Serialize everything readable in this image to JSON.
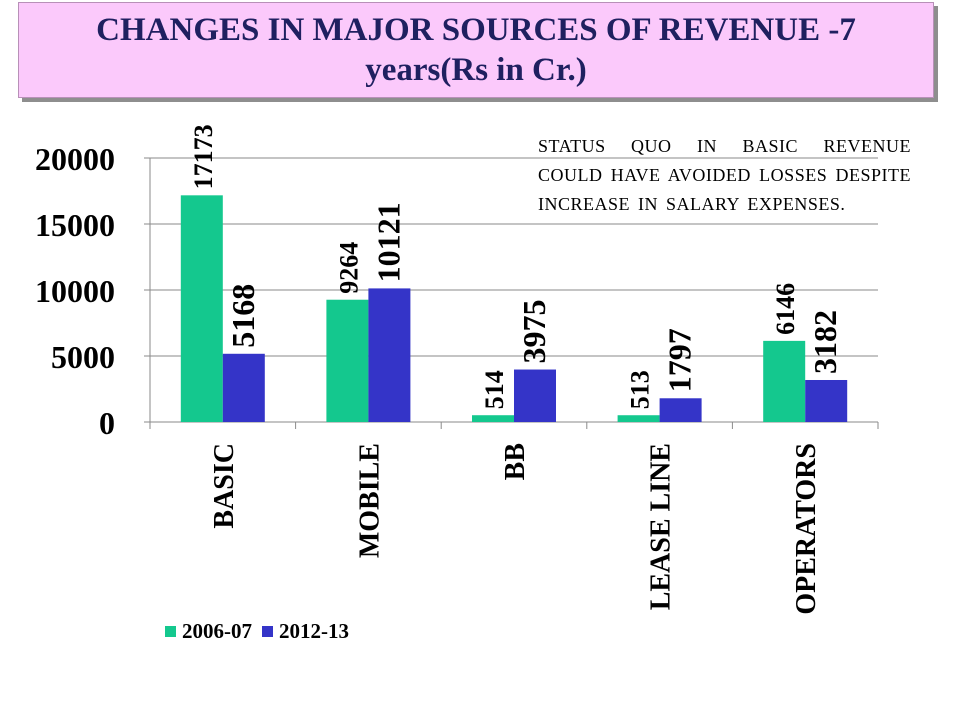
{
  "title": {
    "line1": "CHANGES IN MAJOR SOURCES OF REVENUE -7",
    "line2": "years(Rs in Cr.)"
  },
  "note": "STATUS QUO IN BASIC REVENUE COULD HAVE AVOIDED LOSSES DESPITE INCREASE IN SALARY EXPENSES.",
  "colors": {
    "series_2006_07": "#14c88e",
    "series_2012_13": "#3434c8",
    "title_text": "#1f2060",
    "title_bg": "#fbc9fb"
  },
  "chart_data": {
    "type": "bar",
    "categories": [
      "BASIC",
      "MOBILE",
      "BB",
      "LEASE LINE",
      "OPERATORS"
    ],
    "series": [
      {
        "name": "2006-07",
        "values": [
          17173,
          9264,
          514,
          513,
          6146
        ]
      },
      {
        "name": "2012-13",
        "values": [
          5168,
          10121,
          3975,
          1797,
          3182
        ]
      }
    ],
    "y_ticks": [
      "0",
      "5000",
      "10000",
      "15000",
      "20000"
    ],
    "ylim": [
      0,
      20000
    ],
    "grid": true,
    "legend_position": "bottom-left",
    "xlabel": "",
    "ylabel": ""
  }
}
